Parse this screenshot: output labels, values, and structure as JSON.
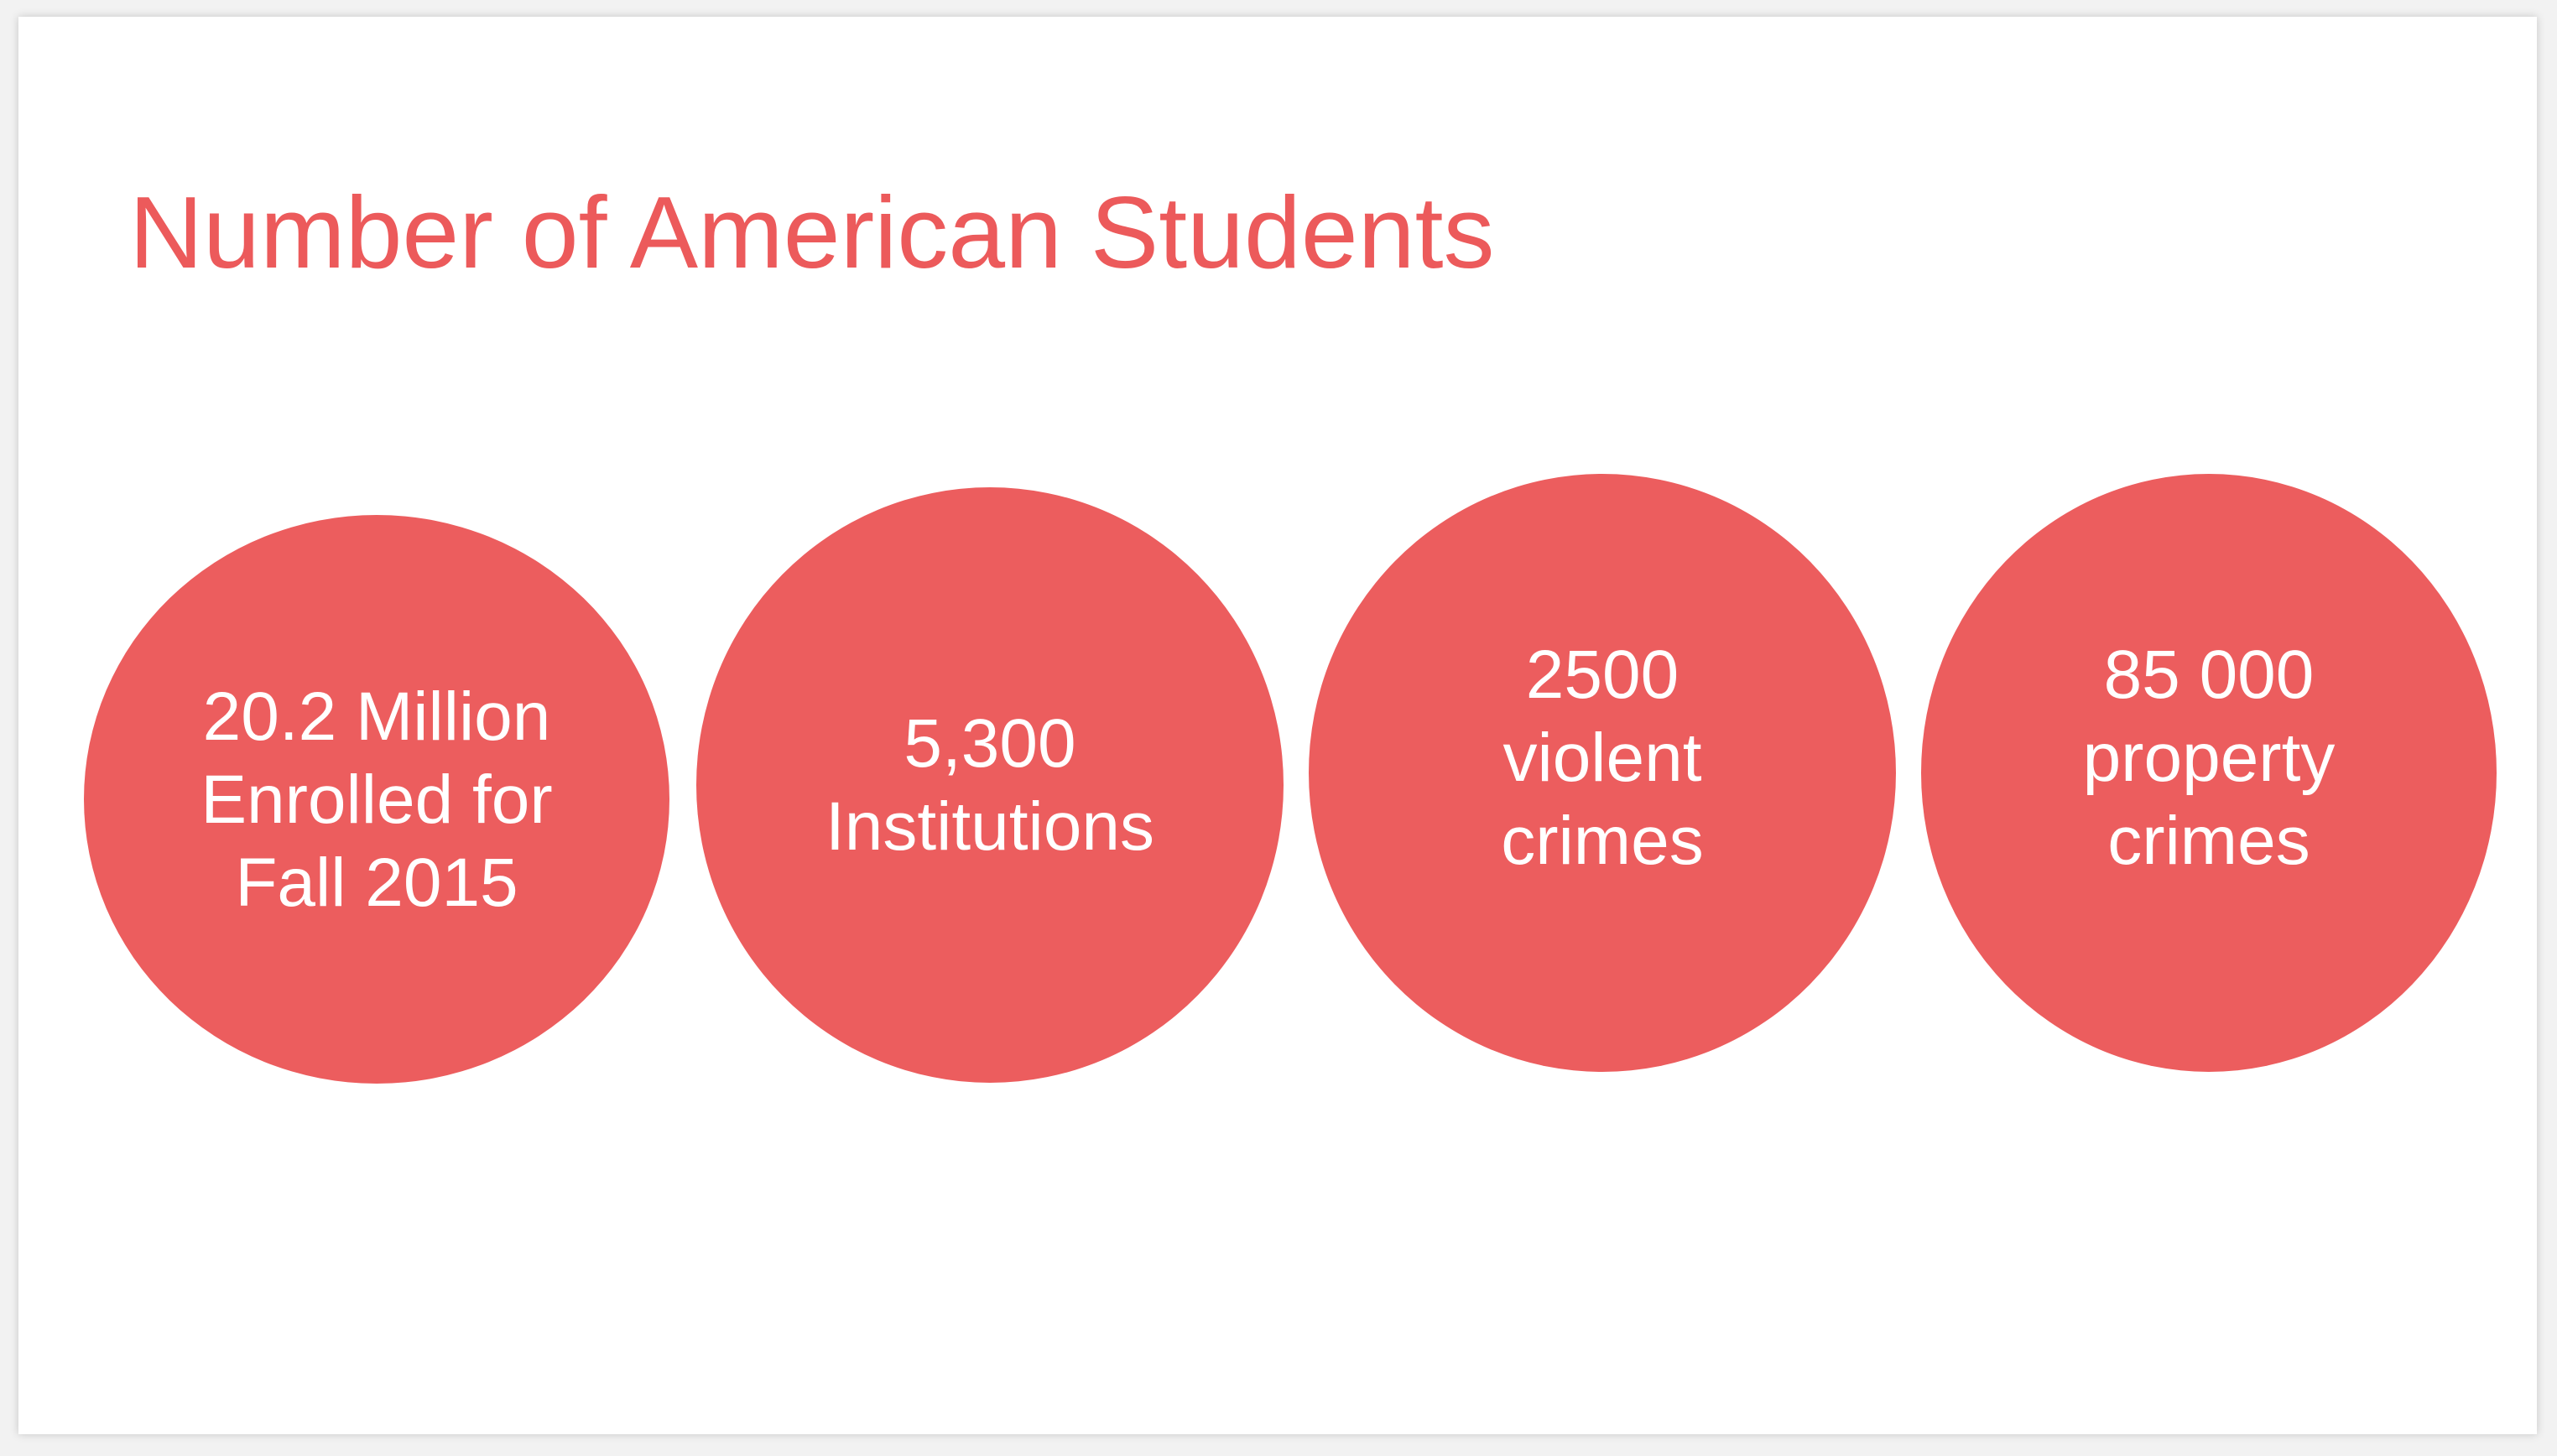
{
  "slide": {
    "title": "Number of American Students",
    "accent_color": "#ec5d5e",
    "stats": [
      {
        "lines": [
          "20.2 Million",
          "Enrolled for",
          "Fall 2015"
        ]
      },
      {
        "lines": [
          "5,300",
          "Institutions"
        ]
      },
      {
        "lines": [
          "2500",
          "violent",
          "crimes"
        ]
      },
      {
        "lines": [
          "85 000",
          "property",
          "crimes"
        ]
      }
    ]
  }
}
